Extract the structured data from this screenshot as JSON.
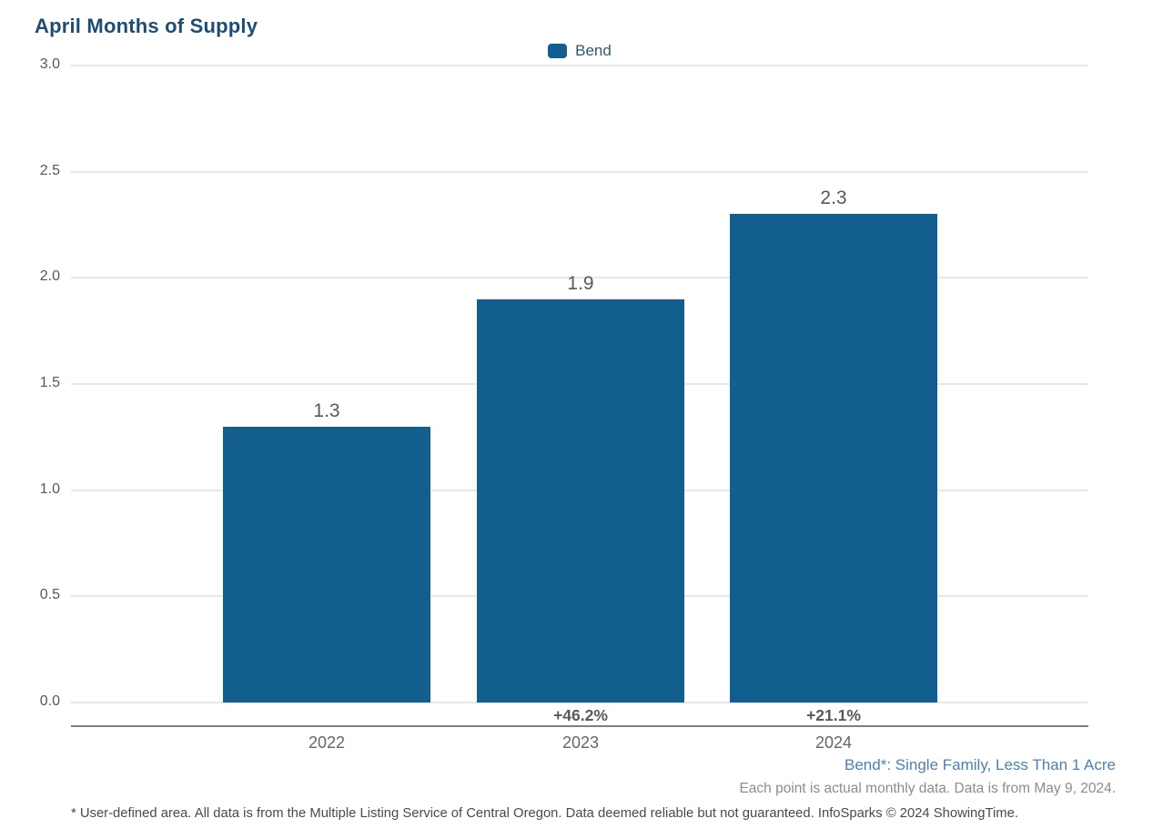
{
  "title": "April Months of Supply",
  "legend": {
    "items": [
      {
        "label": "Bend",
        "color": "#115e8f"
      }
    ]
  },
  "chart_data": {
    "type": "bar",
    "title": "April Months of Supply",
    "categories": [
      "2022",
      "2023",
      "2024"
    ],
    "series": [
      {
        "name": "Bend",
        "color": "#115e8f",
        "values": [
          1.3,
          1.9,
          2.3
        ]
      }
    ],
    "value_labels": [
      "1.3",
      "1.9",
      "2.3"
    ],
    "pct_change_labels": [
      "",
      "+46.2%",
      "+21.1%"
    ],
    "xlabel": "",
    "ylabel": "",
    "ylim": [
      0.0,
      3.0
    ],
    "yticks": [
      0.0,
      0.5,
      1.0,
      1.5,
      2.0,
      2.5,
      3.0
    ],
    "ytick_labels": [
      "0.0",
      "0.5",
      "1.0",
      "1.5",
      "2.0",
      "2.5",
      "3.0"
    ],
    "grid": true,
    "legend_position": "top-center"
  },
  "footnotes": {
    "series_definition": "Bend*: Single Family, Less Than 1 Acre",
    "data_note": "Each point is actual monthly data. Data is from May 9, 2024.",
    "disclaimer": "* User-defined area. All data is from the Multiple Listing Service of Central Oregon. Data deemed reliable but not guaranteed. InfoSparks © 2024 ShowingTime."
  },
  "colors": {
    "bar": "#115e8f",
    "title": "#1e4d74",
    "gridline": "#e7e7e7",
    "axis_line": "#7f7f7f",
    "label_gray": "#595959",
    "footnote_blue": "#4c80b2"
  }
}
